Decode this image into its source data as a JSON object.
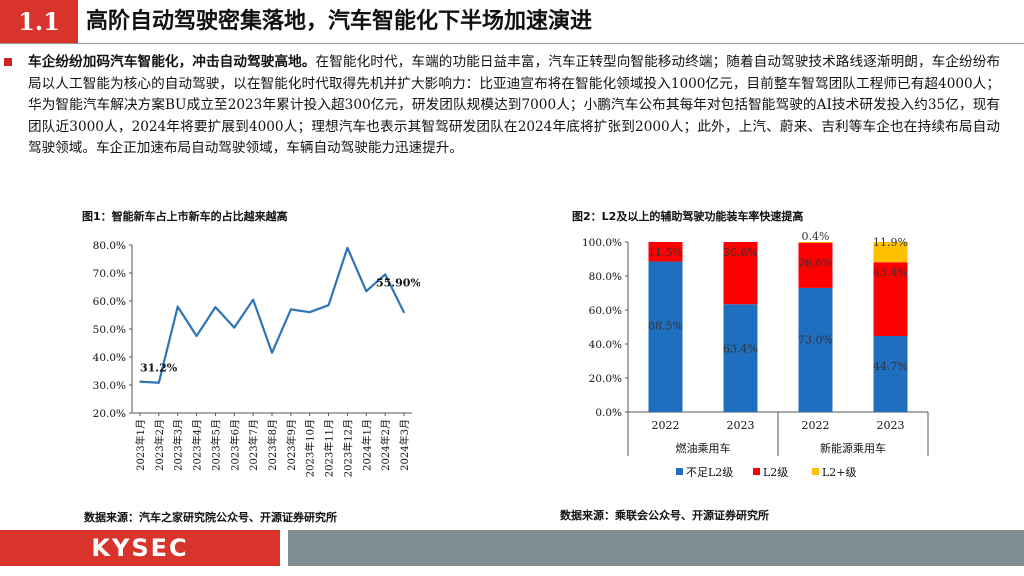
{
  "header": {
    "number": "1.1",
    "title": "高阶自动驾驶密集落地，汽车智能化下半场加速演进"
  },
  "paragraph": {
    "lead": "车企纷纷加码汽车智能化，冲击自动驾驶高地。",
    "body": "在智能化时代，车端的功能日益丰富，汽车正转型向智能移动终端；随着自动驾驶技术路线逐渐明朗，车企纷纷布局以人工智能为核心的自动驾驶，以在智能化时代取得先机并扩大影响力：比亚迪宣布将在智能化领域投入1000亿元，目前整车智驾团队工程师已有超4000人；华为智能汽车解决方案BU成立至2023年累计投入超300亿元，研发团队规模达到7000人；小鹏汽车公布其每年对包括智能驾驶的AI技术研发投入约35亿，现有团队近3000人，2024年将要扩展到4000人；理想汽车也表示其智驾研发团队在2024年底将扩张到2000人；此外，上汽、蔚来、吉利等车企也在持续布局自动驾驶领域。车企正加速布局自动驾驶领域，车辆自动驾驶能力迅速提升。"
  },
  "chart1": {
    "title": "图1：智能新车占上市新车的占比越来越高",
    "source": "数据来源：汽车之家研究院公众号、开源证券研究所"
  },
  "chart2": {
    "title": "图2：L2及以上的辅助驾驶功能装车率快速提高",
    "source": "数据来源：乘联会公众号、开源证券研究所"
  },
  "chart_data": [
    {
      "type": "line",
      "categories": [
        "2023年1月",
        "2023年2月",
        "2023年3月",
        "2023年4月",
        "2023年5月",
        "2023年6月",
        "2023年7月",
        "2023年8月",
        "2023年9月",
        "2023年10月",
        "2023年11月",
        "2023年12月",
        "2024年1月",
        "2024年2月",
        "2024年3月"
      ],
      "values": [
        31.2,
        30.8,
        58.0,
        47.5,
        57.8,
        50.5,
        60.5,
        41.5,
        57.0,
        56.0,
        58.5,
        79.0,
        63.5,
        69.5,
        55.9
      ],
      "ylim": [
        20,
        80
      ],
      "yticks": [
        "20.0%",
        "30.0%",
        "40.0%",
        "50.0%",
        "60.0%",
        "70.0%",
        "80.0%"
      ],
      "labels": [
        {
          "index": 0,
          "text": "31.2%"
        },
        {
          "index": 14,
          "text": "55.90%"
        }
      ],
      "color": "#2e75b6"
    },
    {
      "type": "bar",
      "stacked": true,
      "categories": [
        "2022",
        "2023",
        "2022",
        "2023"
      ],
      "groups": [
        {
          "name": "燃油乘用车",
          "span": [
            0,
            1
          ]
        },
        {
          "name": "新能源乘用车",
          "span": [
            2,
            3
          ]
        }
      ],
      "series": [
        {
          "name": "不足L2级",
          "color": "#1f6fc0",
          "values": [
            88.5,
            63.4,
            73.0,
            44.7
          ],
          "labels": [
            "88.5%",
            "63.4%",
            "73.0%",
            "44.7%"
          ]
        },
        {
          "name": "L2级",
          "color": "#ff0000",
          "values": [
            11.5,
            36.6,
            26.6,
            43.4
          ],
          "labels": [
            "11.5%",
            "36.6%",
            "26.6%",
            "43.4%"
          ]
        },
        {
          "name": "L2+级",
          "color": "#ffc000",
          "values": [
            0.0,
            0.0,
            0.4,
            11.9
          ],
          "labels": [
            "",
            "",
            "0.4%",
            "11.9%"
          ]
        }
      ],
      "ylim": [
        0,
        100
      ],
      "yticks": [
        "0.0%",
        "20.0%",
        "40.0%",
        "60.0%",
        "80.0%",
        "100.0%"
      ]
    }
  ],
  "footer": {
    "logo": "KYSEC"
  }
}
